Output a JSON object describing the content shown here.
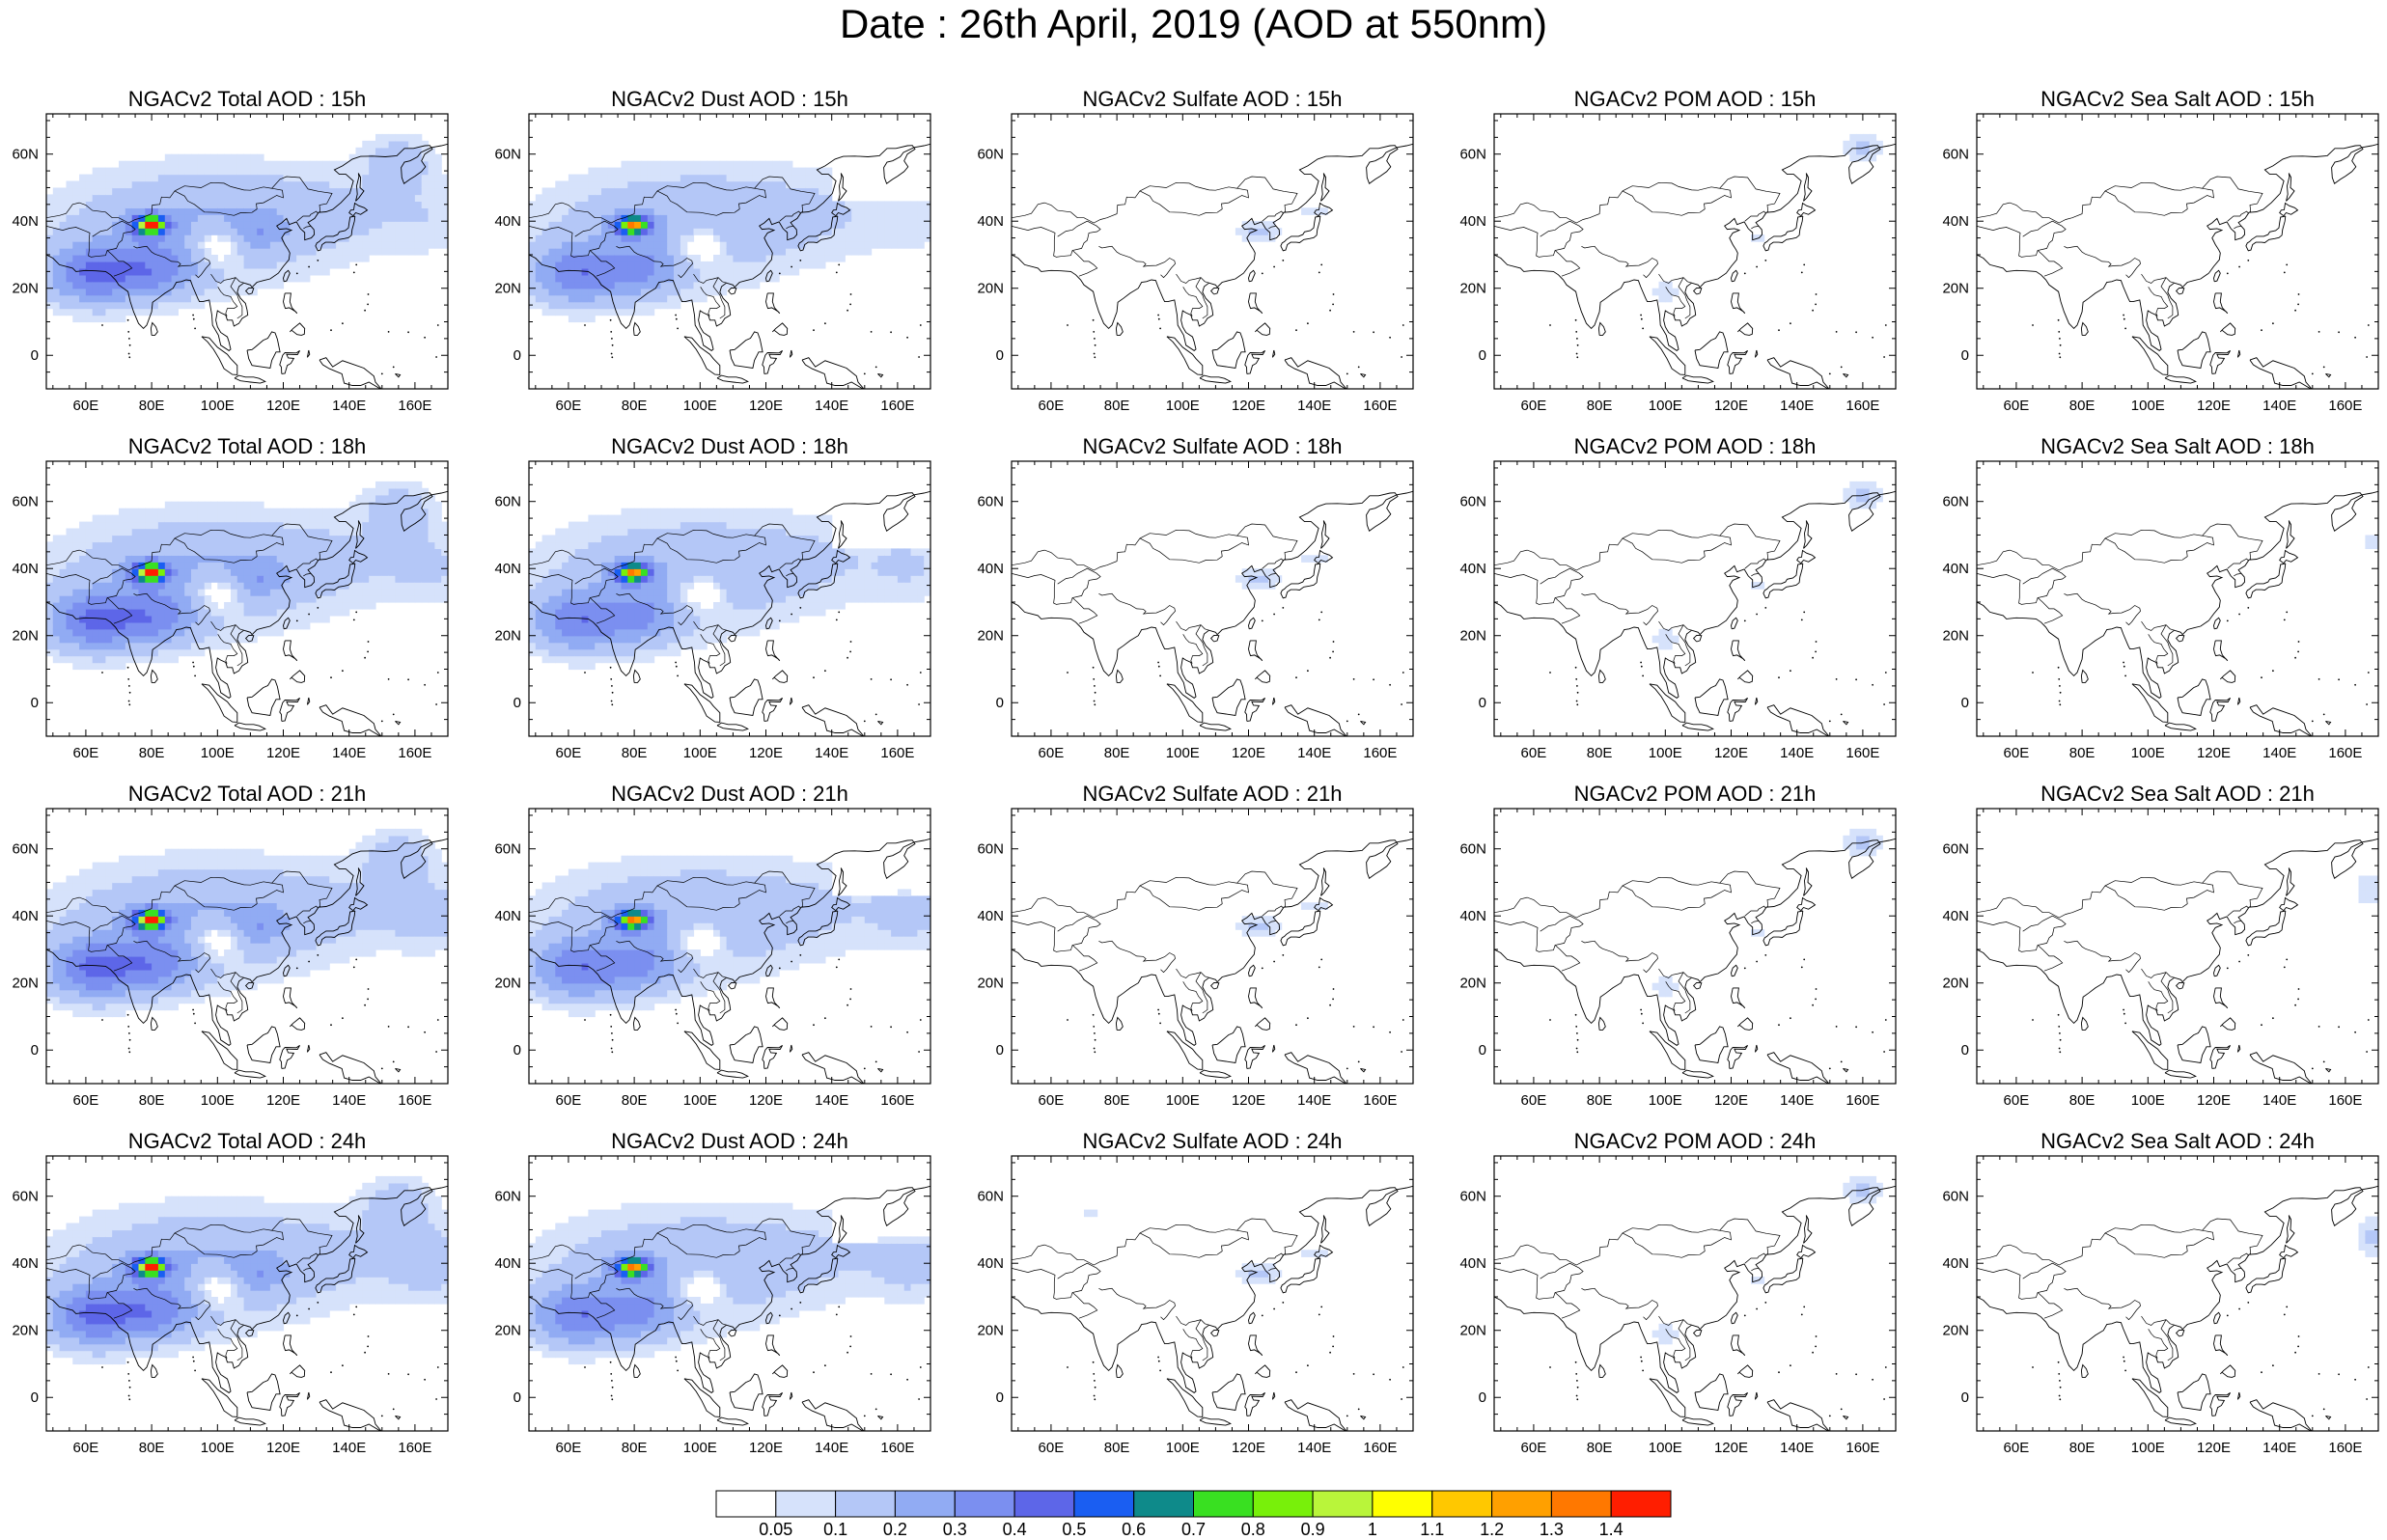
{
  "figure": {
    "title": "Date : 26th April, 2019 (AOD at 550nm)"
  },
  "axes": {
    "lon_ticks": [
      "60E",
      "80E",
      "100E",
      "120E",
      "140E",
      "160E"
    ],
    "lon_values": [
      60,
      80,
      100,
      120,
      140,
      160
    ],
    "lat_ticks": [
      "60N",
      "40N",
      "20N",
      "0"
    ],
    "lat_values": [
      60,
      40,
      20,
      0
    ],
    "lon_range": [
      48,
      170
    ],
    "lat_range": [
      -10,
      72
    ]
  },
  "panels": [
    {
      "title": "NGACv2 Total AOD : 15h",
      "species": "total",
      "hour": 15
    },
    {
      "title": "NGACv2 Dust AOD : 15h",
      "species": "dust",
      "hour": 15
    },
    {
      "title": "NGACv2 Sulfate AOD : 15h",
      "species": "sulfate",
      "hour": 15
    },
    {
      "title": "NGACv2 POM AOD : 15h",
      "species": "pom",
      "hour": 15
    },
    {
      "title": "NGACv2 Sea Salt AOD : 15h",
      "species": "seasalt",
      "hour": 15
    },
    {
      "title": "NGACv2 Total AOD : 18h",
      "species": "total",
      "hour": 18
    },
    {
      "title": "NGACv2 Dust AOD : 18h",
      "species": "dust",
      "hour": 18
    },
    {
      "title": "NGACv2 Sulfate AOD : 18h",
      "species": "sulfate",
      "hour": 18
    },
    {
      "title": "NGACv2 POM AOD : 18h",
      "species": "pom",
      "hour": 18
    },
    {
      "title": "NGACv2 Sea Salt AOD : 18h",
      "species": "seasalt",
      "hour": 18
    },
    {
      "title": "NGACv2 Total AOD : 21h",
      "species": "total",
      "hour": 21
    },
    {
      "title": "NGACv2 Dust AOD : 21h",
      "species": "dust",
      "hour": 21
    },
    {
      "title": "NGACv2 Sulfate AOD : 21h",
      "species": "sulfate",
      "hour": 21
    },
    {
      "title": "NGACv2 POM AOD : 21h",
      "species": "pom",
      "hour": 21
    },
    {
      "title": "NGACv2 Sea Salt AOD : 21h",
      "species": "seasalt",
      "hour": 21
    },
    {
      "title": "NGACv2 Total AOD : 24h",
      "species": "total",
      "hour": 24
    },
    {
      "title": "NGACv2 Dust AOD : 24h",
      "species": "dust",
      "hour": 24
    },
    {
      "title": "NGACv2 Sulfate AOD : 24h",
      "species": "sulfate",
      "hour": 24
    },
    {
      "title": "NGACv2 POM AOD : 24h",
      "species": "pom",
      "hour": 24
    },
    {
      "title": "NGACv2 Sea Salt  AOD : 24h",
      "species": "seasalt",
      "hour": 24
    }
  ],
  "colorbar": {
    "labels": [
      "0.05",
      "0.1",
      "0.2",
      "0.3",
      "0.4",
      "0.5",
      "0.6",
      "0.7",
      "0.8",
      "0.9",
      "1",
      "1.1",
      "1.2",
      "1.3",
      "1.4"
    ],
    "colors": [
      "#ffffff",
      "#d6e2fb",
      "#b4c7f7",
      "#91abf3",
      "#7b8ff0",
      "#5d66e8",
      "#1a5ef2",
      "#0e8a8a",
      "#39e021",
      "#78f00a",
      "#b9f53a",
      "#ffff00",
      "#ffc800",
      "#ffa000",
      "#ff7800",
      "#ff1e00"
    ]
  }
}
